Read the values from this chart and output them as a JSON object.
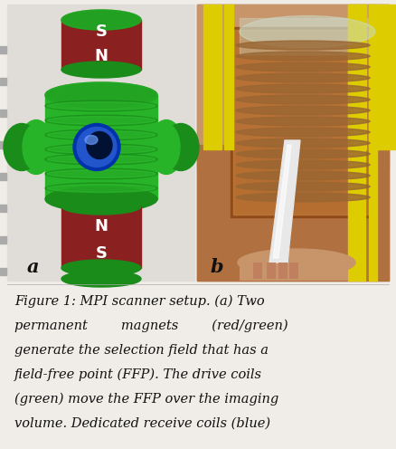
{
  "bg_color": "#f0ede8",
  "caption_lines": [
    "Figure 1: MPI scanner setup. (a) Two",
    "permanent        magnets        (red/green)",
    "generate the selection field that has a",
    "field-free point (FFP). The drive coils",
    "(green) move the FFP over the imaging",
    "volume. Dedicated receive coils (blue)"
  ],
  "caption_color": "#111111",
  "caption_fontsize": 10.5,
  "panel_a_label": "a",
  "panel_b_label": "b",
  "label_color": "#111111",
  "label_fontsize": 15,
  "fig_width": 4.38,
  "fig_height": 4.96,
  "dpi": 100,
  "panel_bg": "#dcdcdc",
  "panel_b_bg": "#b87a50",
  "green_dark": "#1a8c1a",
  "green_mid": "#28b428",
  "green_light": "#33cc33",
  "red_mag": "#8b2020",
  "blue_coil": "#2255cc",
  "blue_dark": "#0033aa",
  "yellow_cable": "#ddcc00",
  "skin_color": "#c8956a",
  "white_tube": "#e8e8e8"
}
